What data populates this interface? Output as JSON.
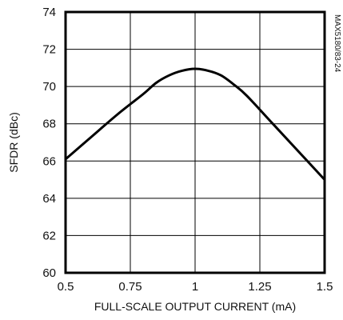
{
  "chart_data": {
    "type": "line",
    "title": "",
    "xlabel": "FULL-SCALE OUTPUT CURRENT (mA)",
    "ylabel": "SFDR (dBc)",
    "xlim": [
      0.5,
      1.5
    ],
    "ylim": [
      60,
      74
    ],
    "grid": true,
    "x_ticks": [
      "0.5",
      "0.75",
      "1",
      "1.25",
      "1.5"
    ],
    "y_ticks": [
      "60",
      "62",
      "64",
      "66",
      "68",
      "70",
      "72",
      "74"
    ],
    "corner_code": "MAX5180/83-24",
    "series": [
      {
        "x": [
          0.5,
          0.6,
          0.7,
          0.8,
          0.85,
          0.9,
          0.95,
          1.0,
          1.05,
          1.1,
          1.15,
          1.2,
          1.3,
          1.4,
          1.5
        ],
        "values": [
          66.1,
          67.3,
          68.5,
          69.6,
          70.2,
          70.6,
          70.85,
          70.95,
          70.85,
          70.6,
          70.1,
          69.5,
          68.0,
          66.5,
          65.0
        ]
      }
    ]
  }
}
